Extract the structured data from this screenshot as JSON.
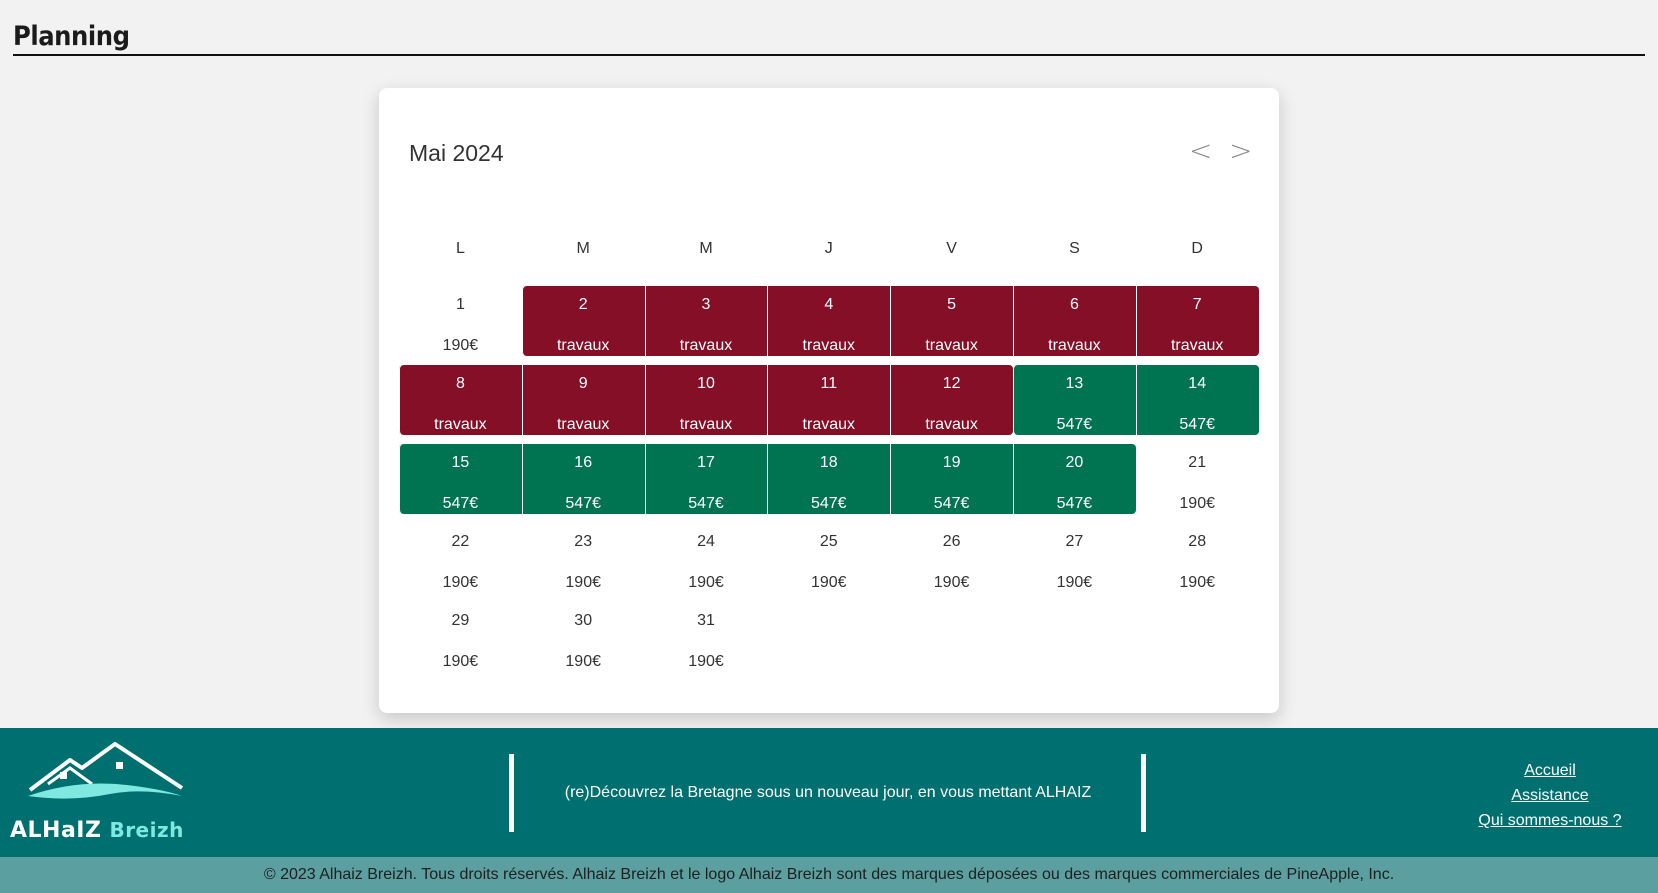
{
  "page": {
    "title": "Planning"
  },
  "calendar": {
    "month_label": "Mai 2024",
    "prev_label": "<",
    "next_label": ">",
    "weekdays": [
      "L",
      "M",
      "M",
      "J",
      "V",
      "S",
      "D"
    ],
    "days": [
      {
        "num": "1",
        "label": "190€",
        "status": "available"
      },
      {
        "num": "2",
        "label": "travaux",
        "status": "travaux"
      },
      {
        "num": "3",
        "label": "travaux",
        "status": "travaux"
      },
      {
        "num": "4",
        "label": "travaux",
        "status": "travaux"
      },
      {
        "num": "5",
        "label": "travaux",
        "status": "travaux"
      },
      {
        "num": "6",
        "label": "travaux",
        "status": "travaux"
      },
      {
        "num": "7",
        "label": "travaux",
        "status": "travaux"
      },
      {
        "num": "8",
        "label": "travaux",
        "status": "travaux"
      },
      {
        "num": "9",
        "label": "travaux",
        "status": "travaux"
      },
      {
        "num": "10",
        "label": "travaux",
        "status": "travaux"
      },
      {
        "num": "11",
        "label": "travaux",
        "status": "travaux"
      },
      {
        "num": "12",
        "label": "travaux",
        "status": "travaux"
      },
      {
        "num": "13",
        "label": "547€",
        "status": "reserve"
      },
      {
        "num": "14",
        "label": "547€",
        "status": "reserve"
      },
      {
        "num": "15",
        "label": "547€",
        "status": "reserve"
      },
      {
        "num": "16",
        "label": "547€",
        "status": "reserve"
      },
      {
        "num": "17",
        "label": "547€",
        "status": "reserve"
      },
      {
        "num": "18",
        "label": "547€",
        "status": "reserve"
      },
      {
        "num": "19",
        "label": "547€",
        "status": "reserve"
      },
      {
        "num": "20",
        "label": "547€",
        "status": "reserve"
      },
      {
        "num": "21",
        "label": "190€",
        "status": "available"
      },
      {
        "num": "22",
        "label": "190€",
        "status": "available"
      },
      {
        "num": "23",
        "label": "190€",
        "status": "available"
      },
      {
        "num": "24",
        "label": "190€",
        "status": "available"
      },
      {
        "num": "25",
        "label": "190€",
        "status": "available"
      },
      {
        "num": "26",
        "label": "190€",
        "status": "available"
      },
      {
        "num": "27",
        "label": "190€",
        "status": "available"
      },
      {
        "num": "28",
        "label": "190€",
        "status": "available"
      },
      {
        "num": "29",
        "label": "190€",
        "status": "available"
      },
      {
        "num": "30",
        "label": "190€",
        "status": "available"
      },
      {
        "num": "31",
        "label": "190€",
        "status": "available"
      }
    ],
    "colors": {
      "travaux": "#840f26",
      "reserve": "#007451"
    }
  },
  "footer": {
    "logo_main": "ALHaIZ",
    "logo_sub": "Breizh",
    "tagline": "(re)Découvrez la Bretagne sous un nouveau jour, en vous mettant ALHAIZ",
    "links": [
      "Accueil",
      "Assistance",
      "Qui sommes-nous ?"
    ],
    "copyright": "© 2023 Alhaiz Breizh. Tous droits réservés. Alhaiz Breizh et le logo Alhaiz Breizh sont des marques déposées ou des marques commerciales de PineApple, Inc.",
    "background": "#006f70",
    "copyright_background": "#5b9fa0"
  }
}
